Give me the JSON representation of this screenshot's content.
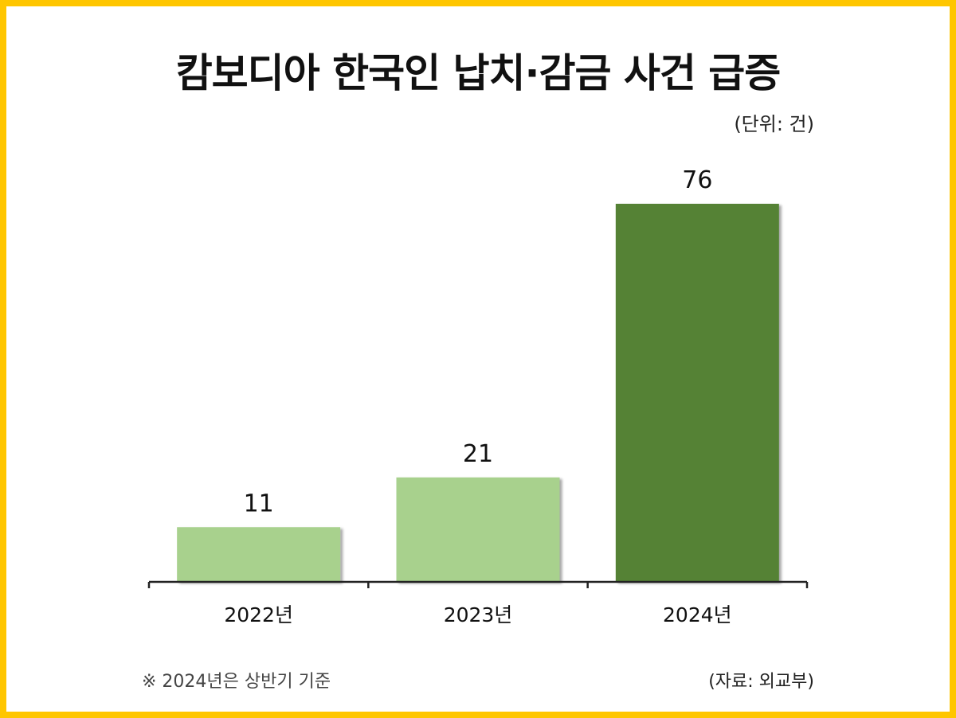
{
  "title": "캄보디아 한국인 납치·감금 사건 급증",
  "unit": "(단위: 건)",
  "footnote": "※ 2024년은 상반기 기준",
  "source": "(자료: 외교부)",
  "colors": {
    "frame": "#FFC600",
    "bar_light": "#A8D18D",
    "bar_dark": "#548235",
    "axis": "#222222"
  },
  "chart_data": {
    "type": "bar",
    "title": "캄보디아 한국인 납치·감금 사건 급증",
    "categories": [
      "2022년",
      "2023년",
      "2024년"
    ],
    "values": [
      11,
      21,
      76
    ],
    "ylabel": "",
    "xlabel": "",
    "ylim": [
      0,
      76
    ],
    "grid": false,
    "bar_colors": [
      "#A8D18D",
      "#A8D18D",
      "#548235"
    ]
  }
}
